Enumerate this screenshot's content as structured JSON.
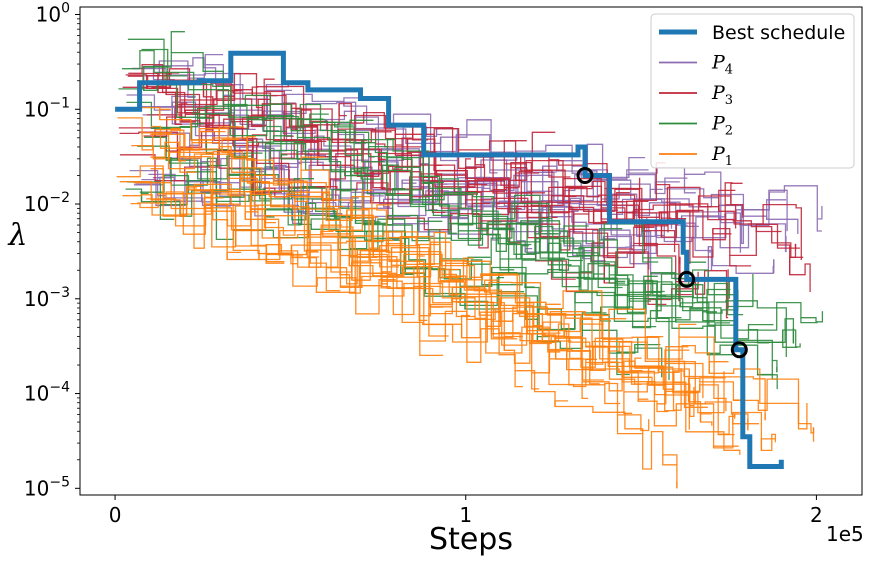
{
  "chart_data": {
    "type": "line",
    "title": "",
    "xlabel": "Steps",
    "ylabel": "λ",
    "x_offset_label": "1e5",
    "xlim": [
      -10000,
      213000
    ],
    "ylim": [
      8.5e-06,
      1.2
    ],
    "yscale": "log",
    "x_ticks": [
      {
        "value": 0,
        "label": "0"
      },
      {
        "value": 100000,
        "label": "1"
      },
      {
        "value": 200000,
        "label": "2"
      }
    ],
    "y_ticks": [
      {
        "value": 1,
        "base": "10",
        "exp": "0"
      },
      {
        "value": 0.1,
        "base": "10",
        "exp": "−1"
      },
      {
        "value": 0.01,
        "base": "10",
        "exp": "−2"
      },
      {
        "value": 0.001,
        "base": "10",
        "exp": "−3"
      },
      {
        "value": 0.0001,
        "base": "10",
        "exp": "−4"
      },
      {
        "value": 1e-05,
        "base": "10",
        "exp": "−5"
      }
    ],
    "grid": false,
    "legend_position": "top-right",
    "legend": [
      {
        "name": "Best schedule",
        "color": "#1f77b4",
        "sub": ""
      },
      {
        "name": "P",
        "color": "#8c6bb1",
        "sub": "4"
      },
      {
        "name": "P",
        "color": "#c0263a",
        "sub": "3"
      },
      {
        "name": "P",
        "color": "#2e8b3e",
        "sub": "2"
      },
      {
        "name": "P",
        "color": "#ff7f0e",
        "sub": "1"
      }
    ],
    "series": [
      {
        "name": "Best schedule",
        "color": "#1f77b4",
        "style": "step-post",
        "x": [
          0,
          7000,
          24000,
          33000,
          48000,
          55000,
          70000,
          78000,
          88000,
          132000,
          134000,
          135000,
          141000,
          162000,
          163000,
          177000,
          178000,
          179000,
          181000,
          184000,
          190000
        ],
        "y": [
          0.1,
          0.19,
          0.2,
          0.39,
          0.19,
          0.16,
          0.13,
          0.068,
          0.033,
          0.04,
          0.02,
          0.02,
          0.0065,
          0.0031,
          0.0016,
          0.00029,
          0.00029,
          3.5e-05,
          1.7e-05,
          1.7e-05,
          2e-05
        ]
      },
      {
        "name": "P4",
        "color": "#8c6bb1",
        "style": "population",
        "x_range": [
          0,
          202000
        ],
        "y_start": [
          0.015,
          0.3
        ],
        "y_end": [
          0.002,
          0.012
        ],
        "count": 13
      },
      {
        "name": "P3",
        "color": "#c0263a",
        "style": "population",
        "x_range": [
          0,
          202000
        ],
        "y_start": [
          0.03,
          0.25
        ],
        "y_end": [
          0.0012,
          0.008
        ],
        "count": 12
      },
      {
        "name": "P2",
        "color": "#2e8b3e",
        "style": "population",
        "x_range": [
          0,
          202000
        ],
        "y_start": [
          0.01,
          0.6
        ],
        "y_end": [
          0.00015,
          0.0015
        ],
        "count": 13
      },
      {
        "name": "P1",
        "color": "#ff7f0e",
        "style": "population",
        "x_range": [
          0,
          202000
        ],
        "y_start": [
          0.01,
          0.12
        ],
        "y_end": [
          1.2e-05,
          0.00012
        ],
        "count": 16
      }
    ],
    "markers": [
      {
        "x": 134000,
        "y": 0.02
      },
      {
        "x": 163000,
        "y": 0.0016
      },
      {
        "x": 178000,
        "y": 0.00029
      }
    ]
  }
}
